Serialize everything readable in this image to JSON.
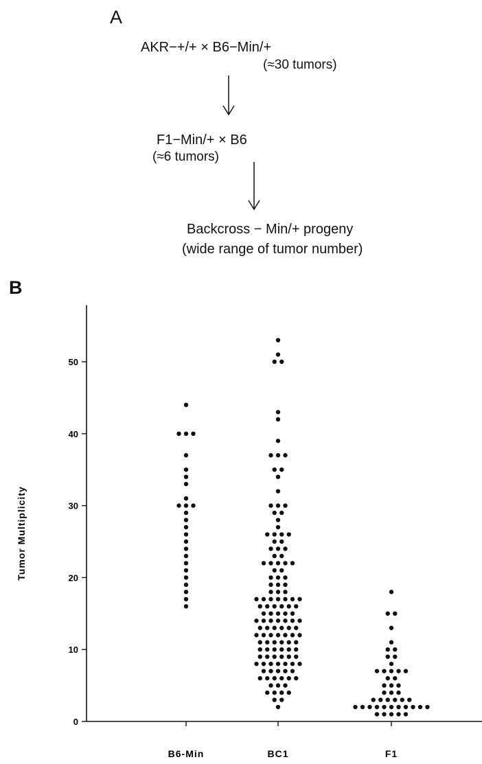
{
  "panelA": {
    "letter": "A",
    "line1": "AKR−+/+ × B6−Min/+",
    "line1_note": "(≈30 tumors)",
    "line2": "F1−Min/+ × B6",
    "line2_note": "(≈6 tumors)",
    "line3": "Backcross − Min/+ progeny",
    "line3_note": "(wide range of tumor number)"
  },
  "panelB": {
    "letter": "B"
  },
  "chart_data": {
    "type": "scatter",
    "title": "",
    "xlabel": "",
    "ylabel": "Tumor Multiplicity",
    "ylim": [
      0,
      55
    ],
    "yticks": [
      0,
      10,
      20,
      30,
      40,
      50
    ],
    "grid": false,
    "categories": [
      "B6-Min",
      "BC1",
      "F1"
    ],
    "series": [
      {
        "category": "B6-Min",
        "values": [
          16,
          17,
          18,
          19,
          20,
          21,
          22,
          23,
          24,
          25,
          26,
          27,
          28,
          29,
          30,
          30,
          30,
          31,
          33,
          34,
          35,
          37,
          40,
          40,
          40,
          44
        ]
      },
      {
        "category": "BC1",
        "values": [
          2,
          3,
          3,
          4,
          4,
          4,
          4,
          5,
          5,
          5,
          6,
          6,
          6,
          6,
          6,
          6,
          7,
          7,
          7,
          7,
          7,
          8,
          8,
          8,
          8,
          8,
          8,
          8,
          9,
          9,
          9,
          9,
          9,
          9,
          10,
          10,
          10,
          10,
          10,
          10,
          11,
          11,
          11,
          11,
          11,
          11,
          12,
          12,
          12,
          12,
          12,
          12,
          12,
          13,
          13,
          13,
          13,
          13,
          13,
          14,
          14,
          14,
          14,
          14,
          14,
          14,
          15,
          15,
          15,
          15,
          15,
          16,
          16,
          16,
          16,
          16,
          16,
          17,
          17,
          17,
          17,
          17,
          17,
          17,
          18,
          18,
          18,
          19,
          19,
          19,
          20,
          20,
          20,
          21,
          21,
          22,
          22,
          22,
          22,
          22,
          23,
          23,
          24,
          24,
          24,
          25,
          25,
          26,
          26,
          26,
          26,
          27,
          28,
          29,
          29,
          30,
          30,
          30,
          32,
          34,
          35,
          35,
          37,
          37,
          37,
          39,
          42,
          43,
          50,
          50,
          51,
          53
        ]
      },
      {
        "category": "F1",
        "values": [
          1,
          1,
          1,
          1,
          1,
          2,
          2,
          2,
          2,
          2,
          2,
          2,
          2,
          2,
          2,
          2,
          3,
          3,
          3,
          3,
          3,
          3,
          4,
          4,
          4,
          5,
          5,
          5,
          6,
          6,
          7,
          7,
          7,
          7,
          7,
          8,
          9,
          9,
          10,
          10,
          11,
          13,
          15,
          15,
          18
        ]
      }
    ]
  }
}
